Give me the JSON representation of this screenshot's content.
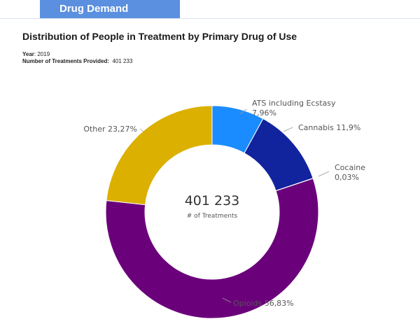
{
  "tab": {
    "label": "Drug Demand"
  },
  "header": {
    "title": "Distribution of People in Treatment by Primary Drug of Use",
    "year_label": "Year",
    "year_value": "2019",
    "count_label": "Number of Treatments Provided:",
    "count_value": "401 233"
  },
  "chart_data": {
    "type": "pie",
    "donut": true,
    "center_value": "401 233",
    "center_label": "# of Treatments",
    "slices": [
      {
        "name": "ATS including Ecstasy",
        "value_label": "7,96%",
        "value": 7.96,
        "color": "#1a8cff"
      },
      {
        "name": "Cannabis",
        "value_label": "11,9%",
        "value": 11.9,
        "color": "#12239e"
      },
      {
        "name": "Cocaine",
        "value_label": "0,03%",
        "value": 0.03,
        "color": "#1a1a6e"
      },
      {
        "name": "Opioids",
        "value_label": "56,83%",
        "value": 56.83,
        "color": "#6b007b"
      },
      {
        "name": "Other",
        "value_label": "23,27%",
        "value": 23.27,
        "color": "#dbb000"
      }
    ],
    "legend": "none"
  }
}
